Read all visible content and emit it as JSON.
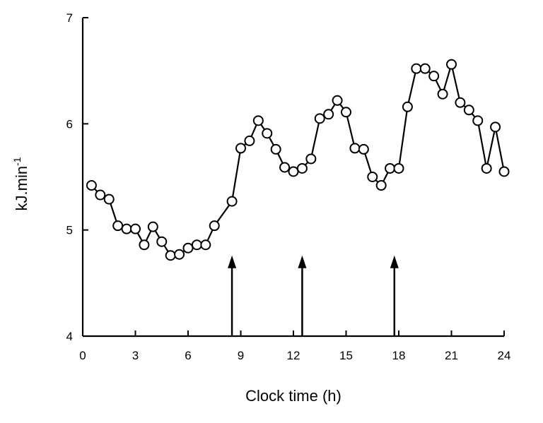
{
  "chart_data": {
    "type": "line",
    "title": "",
    "xlabel": "Clock time (h)",
    "ylabel": {
      "base": "kJ.min",
      "superscript": "-1"
    },
    "xlim": [
      0,
      24
    ],
    "ylim": [
      4,
      7
    ],
    "xticks": [
      0,
      3,
      6,
      9,
      12,
      15,
      18,
      21,
      24
    ],
    "yticks": [
      4,
      5,
      6,
      7
    ],
    "grid": false,
    "legend": "none",
    "marker": "open-circle",
    "line_color": "#000000",
    "series": [
      {
        "x": [
          0.5,
          1.0,
          1.5,
          2.0,
          2.5,
          3.0,
          3.5,
          4.0,
          4.5,
          5.0,
          5.5,
          6.0,
          6.5,
          7.0,
          7.5,
          8.5,
          9.0,
          9.5,
          10.0,
          10.5,
          11.0,
          11.5,
          12.0,
          12.5,
          13.0,
          13.5,
          14.0,
          14.5,
          15.0,
          15.5,
          16.0,
          16.5,
          17.0,
          17.5,
          18.0,
          18.5,
          19.0,
          19.5,
          20.0,
          20.5,
          21.0,
          21.5,
          22.0,
          22.5,
          23.0,
          23.5,
          24.0
        ],
        "y": [
          5.42,
          5.33,
          5.29,
          5.04,
          5.01,
          5.01,
          4.86,
          5.03,
          4.89,
          4.76,
          4.77,
          4.83,
          4.86,
          4.86,
          5.04,
          5.27,
          5.77,
          5.84,
          6.03,
          5.91,
          5.76,
          5.59,
          5.55,
          5.58,
          5.67,
          6.05,
          6.09,
          6.22,
          6.11,
          5.77,
          5.76,
          5.5,
          5.42,
          5.58,
          5.58,
          6.16,
          6.52,
          6.52,
          6.45,
          6.28,
          6.56,
          6.2,
          6.13,
          6.03,
          5.58,
          5.97,
          5.55
        ]
      }
    ],
    "arrows": [
      {
        "x": 8.5,
        "y_from": 4.0,
        "y_to": 4.76
      },
      {
        "x": 12.5,
        "y_from": 4.0,
        "y_to": 4.76
      },
      {
        "x": 17.75,
        "y_from": 4.0,
        "y_to": 4.76
      }
    ]
  }
}
